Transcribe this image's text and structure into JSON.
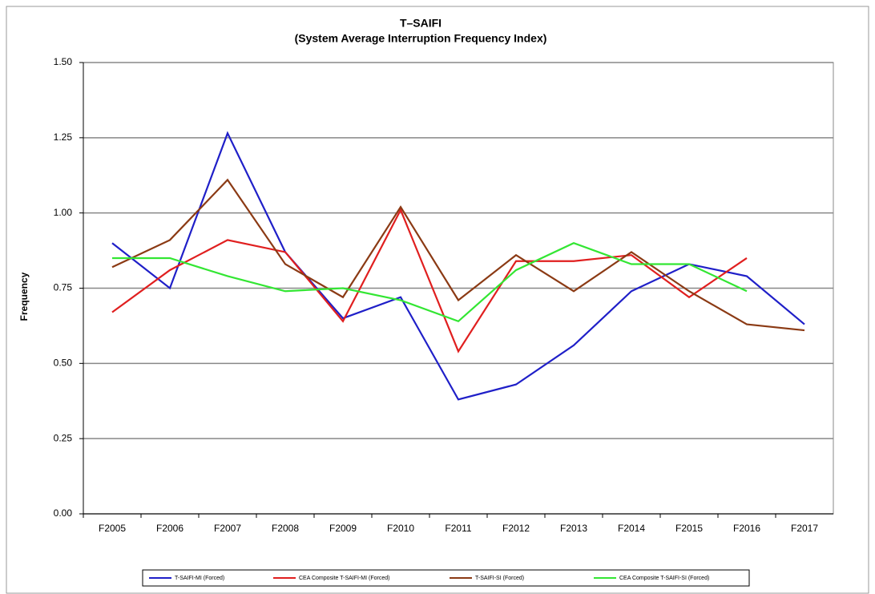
{
  "chart_data": {
    "type": "line",
    "title": "T–SAIFI",
    "subtitle": "(System Average Interruption Frequency Index)",
    "y_label": "Frequency",
    "categories": [
      "F2005",
      "F2006",
      "F2007",
      "F2008",
      "F2009",
      "F2010",
      "F2011",
      "F2012",
      "F2013",
      "F2014",
      "F2015",
      "F2016",
      "F2017"
    ],
    "series": [
      {
        "name": "T-SAIFI-MI (Forced)",
        "color": "#1f1fc8",
        "values": [
          0.9,
          0.75,
          1.265,
          0.87,
          0.65,
          0.72,
          0.38,
          0.43,
          0.56,
          0.74,
          0.83,
          0.79,
          0.63
        ]
      },
      {
        "name": "CEA Composite T-SAIFI-MI (Forced)",
        "color": "#e01f1f",
        "values": [
          0.67,
          0.81,
          0.91,
          0.87,
          0.64,
          1.01,
          0.54,
          0.84,
          0.84,
          0.86,
          0.72,
          0.85,
          null
        ]
      },
      {
        "name": "T-SAIFI-SI (Forced)",
        "color": "#8b3a14",
        "values": [
          0.82,
          0.91,
          1.11,
          0.83,
          0.72,
          1.02,
          0.71,
          0.86,
          0.74,
          0.87,
          0.74,
          0.63,
          0.61
        ]
      },
      {
        "name": "CEA Composite T-SAIFI-SI (Forced)",
        "color": "#33e633",
        "values": [
          0.85,
          0.85,
          0.79,
          0.74,
          0.75,
          0.71,
          0.64,
          0.81,
          0.9,
          0.83,
          0.83,
          0.74,
          null
        ]
      }
    ],
    "ylim": [
      0,
      1.5
    ],
    "yticks": [
      {
        "value": 0,
        "label": "0.00"
      },
      {
        "value": 0.25,
        "label": "0.25"
      },
      {
        "value": 0.5,
        "label": "0.50"
      },
      {
        "value": 0.75,
        "label": "0.75"
      },
      {
        "value": 1,
        "label": "1.00"
      },
      {
        "value": 1.25,
        "label": "1.25"
      },
      {
        "value": 1.5,
        "label": "1.50"
      }
    ],
    "grid": true,
    "legend": "bottom"
  }
}
